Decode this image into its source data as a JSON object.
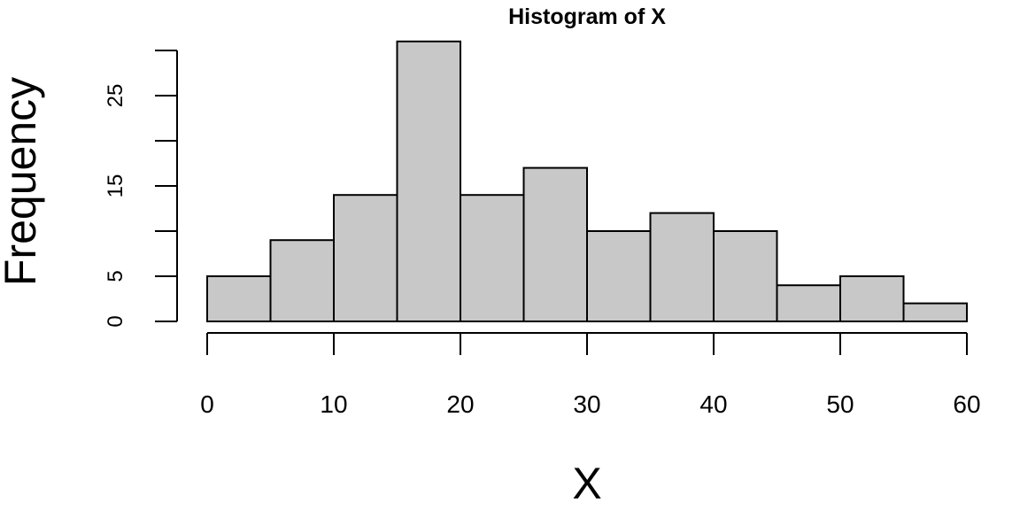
{
  "chart_data": {
    "type": "histogram",
    "title": "Histogram of X",
    "x_label": "X",
    "y_label": "Frequency",
    "bins": [
      0,
      5,
      10,
      15,
      20,
      25,
      30,
      35,
      40,
      45,
      50,
      55,
      60
    ],
    "values": [
      5,
      9,
      14,
      31,
      14,
      17,
      10,
      12,
      10,
      4,
      5,
      2
    ],
    "color": "#c8c8c8",
    "xlim": [
      0,
      60
    ],
    "xticks": [
      0,
      10,
      20,
      30,
      40,
      50,
      60
    ],
    "ylim": [
      0,
      30
    ],
    "yticks": [
      0,
      5,
      {
        "value": 10,
        "label": null
      },
      15,
      {
        "value": 20,
        "label": null
      },
      25,
      {
        "value": 30,
        "label": null
      }
    ]
  }
}
